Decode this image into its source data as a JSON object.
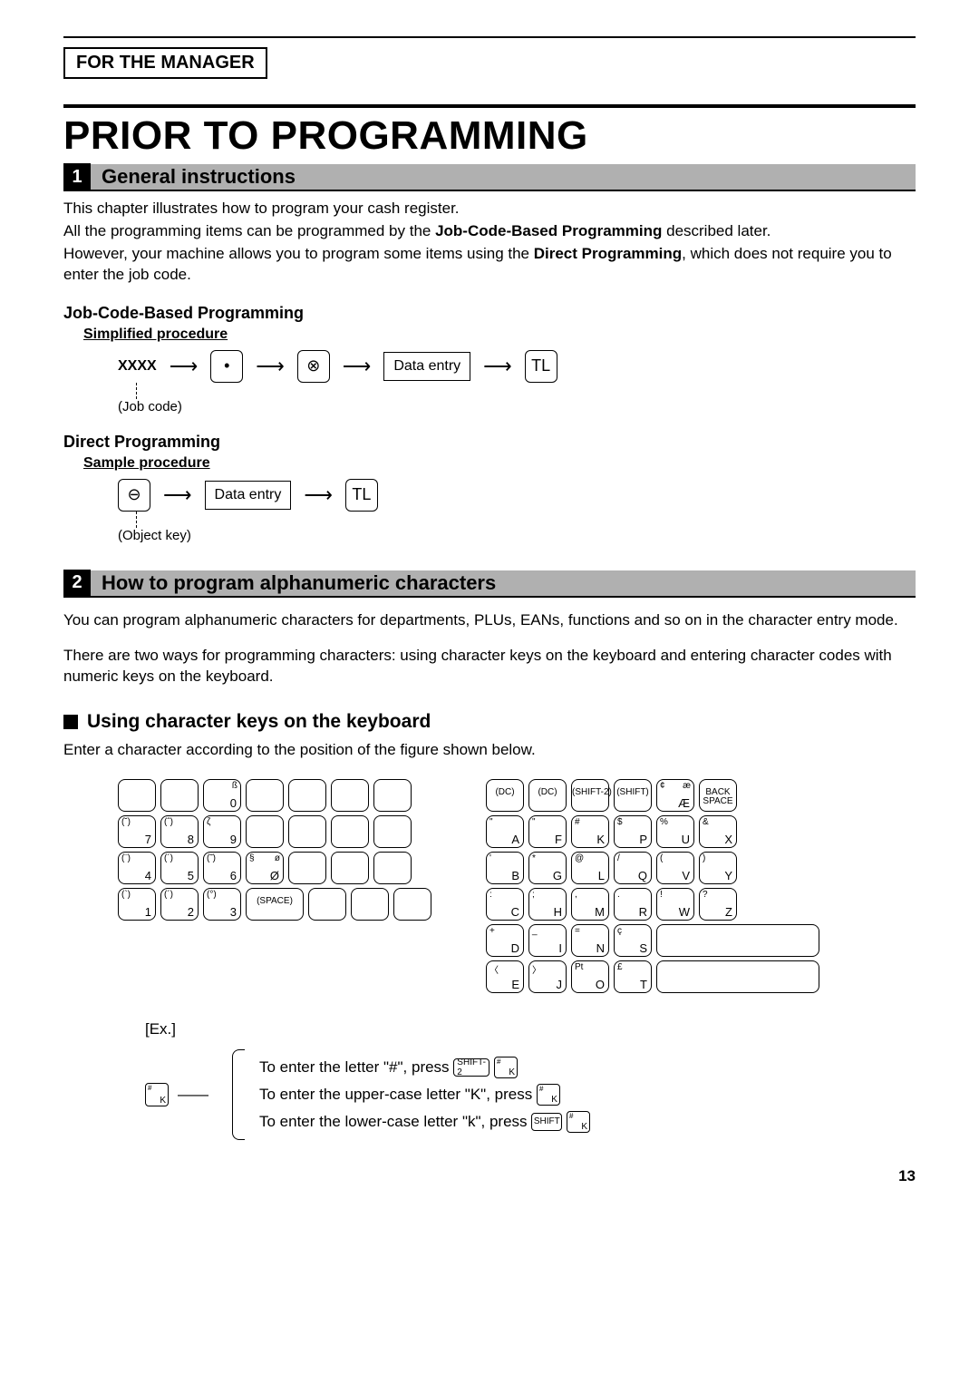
{
  "header": {
    "manager": "FOR THE MANAGER"
  },
  "title": "PRIOR TO PROGRAMMING",
  "section1": {
    "num": "1",
    "title": "General instructions",
    "p1a": "This chapter illustrates how to program your cash register.",
    "p1b_pre": "All the programming items can be programmed by the ",
    "p1b_bold": "Job-Code-Based Programming",
    "p1b_post": " described later.",
    "p1c_pre": "However, your machine allows you to program some items using the ",
    "p1c_bold": "Direct Programming",
    "p1c_post": ", which does not require you to enter the job code.",
    "jcb_head": "Job-Code-Based Programming",
    "jcb_sub": "Simplified procedure",
    "flow1": {
      "xxxx": "XXXX",
      "dot": "•",
      "x": "⊗",
      "data": "Data entry",
      "tl": "TL",
      "jobcode": "(Job code)"
    },
    "dp_head": "Direct Programming",
    "dp_sub": "Sample procedure",
    "flow2": {
      "minus": "⊖",
      "data": "Data entry",
      "tl": "TL",
      "objkey": "(Object key)"
    }
  },
  "section2": {
    "num": "2",
    "title": "How to program alphanumeric characters",
    "p1": "You can program alphanumeric characters for departments, PLUs, EANs, functions and so on in the character entry mode.",
    "p2": "There are two ways for programming characters: using character keys on the keyboard and entering character codes with numeric keys on the keyboard.",
    "h3": "Using character keys on the keyboard",
    "p3": "Enter a character according to the position of the figure shown below."
  },
  "kb_left": [
    [
      {},
      {},
      {
        "tr": "ß",
        "br": "0"
      },
      {},
      {},
      {},
      {}
    ],
    [
      {
        "tl": "(˘)",
        "br": "7"
      },
      {
        "tl": "(ˆ)",
        "br": "8"
      },
      {
        "tl": "ζ",
        "br": "9"
      },
      {},
      {},
      {},
      {}
    ],
    [
      {
        "tl": "(¨)",
        "br": "4"
      },
      {
        "tl": "(´)",
        "br": "5"
      },
      {
        "tl": "(˜)",
        "br": "6"
      },
      {
        "tl": "§",
        "tr": "ø",
        "br": "Ø"
      },
      {},
      {},
      {}
    ],
    [
      {
        "tl": "(`)",
        "br": "1"
      },
      {
        "tl": "(´)",
        "br": "2"
      },
      {
        "tl": "(°)",
        "br": "3"
      },
      {
        "c": "(SPACE)",
        "wide": true
      },
      {},
      {},
      {}
    ]
  ],
  "kb_right": [
    [
      {
        "c": "(DC)"
      },
      {
        "c": "(DC)"
      },
      {
        "c": "(SHIFT-2)"
      },
      {
        "c": "(SHIFT)"
      },
      {
        "tl": "¢",
        "tr": "æ",
        "br": "Æ"
      },
      {
        "c": "BACK\\nSPACE"
      }
    ],
    [
      {
        "tl": "\"",
        "br": "A"
      },
      {
        "tl": "\"",
        "br": "F"
      },
      {
        "tl": "#",
        "br": "K"
      },
      {
        "tl": "$",
        "br": "P"
      },
      {
        "tl": "%",
        "br": "U"
      },
      {
        "tl": "&",
        "br": "X"
      }
    ],
    [
      {
        "tl": "'",
        "br": "B"
      },
      {
        "tl": "*",
        "br": "G"
      },
      {
        "tl": "@",
        "br": "L"
      },
      {
        "tl": "/",
        "br": "Q"
      },
      {
        "tl": "(",
        "br": "V"
      },
      {
        "tl": ")",
        "br": "Y"
      }
    ],
    [
      {
        "tl": ":",
        "br": "C"
      },
      {
        "tl": ";",
        "br": "H"
      },
      {
        "tl": ",",
        "br": "M"
      },
      {
        "tl": ".",
        "br": "R"
      },
      {
        "tl": "!",
        "br": "W"
      },
      {
        "tl": "?",
        "br": "Z"
      }
    ],
    [
      {
        "tl": "+",
        "br": "D"
      },
      {
        "tl": "_",
        "br": "I"
      },
      {
        "tl": "=",
        "br": "N"
      },
      {
        "tl": "ç",
        "br": "S"
      },
      {
        "xwide": true
      }
    ],
    [
      {
        "tl": "〈",
        "br": "E"
      },
      {
        "tl": "〉",
        "br": "J"
      },
      {
        "tl": "Pt",
        "br": "O"
      },
      {
        "tl": "£",
        "br": "T"
      },
      {
        "xwide": true
      }
    ]
  ],
  "example": {
    "label": "[Ex.]",
    "key_t": "#",
    "key_b": "K",
    "line1_pre": "To enter the letter \"#\", press ",
    "line1_k1": "SHIFT-2",
    "line2_pre": "To enter the upper-case letter \"K\", press ",
    "line3_pre": "To enter the lower-case letter \"k\", press  ",
    "line3_k1": "SHIFT"
  },
  "page": "13"
}
